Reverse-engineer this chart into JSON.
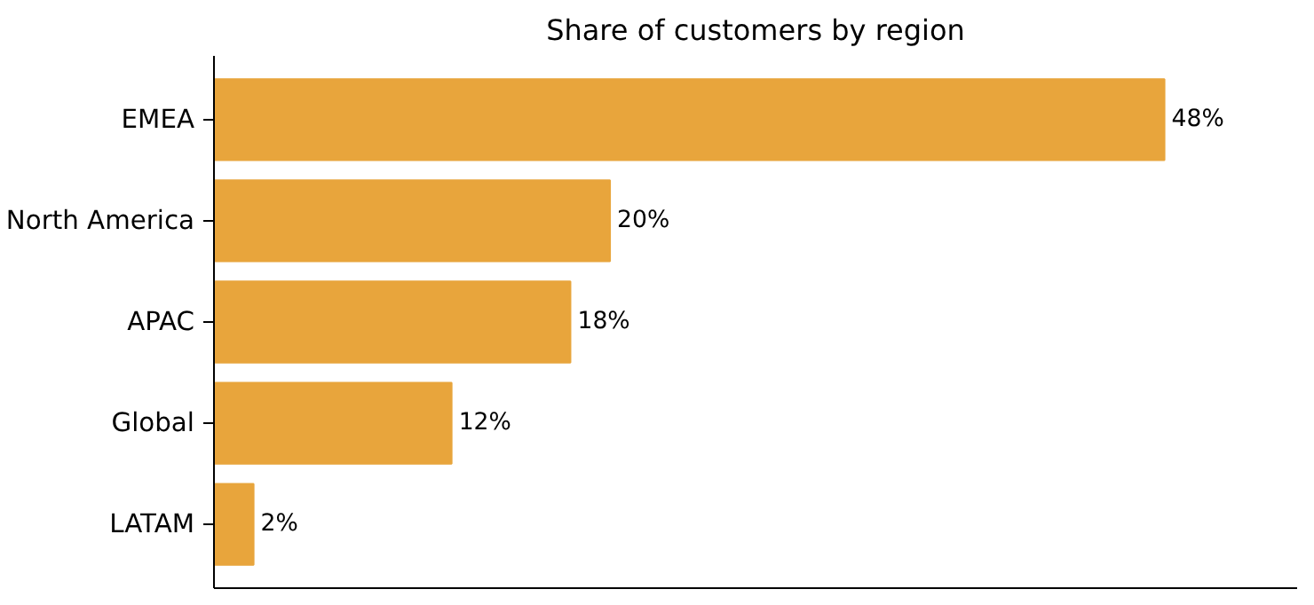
{
  "chart_data": {
    "type": "bar",
    "orientation": "horizontal",
    "title": "Share of customers by region",
    "categories": [
      "EMEA",
      "North America",
      "APAC",
      "Global",
      "LATAM"
    ],
    "values": [
      48,
      20,
      18,
      12,
      2
    ],
    "value_labels": [
      "48%",
      "20%",
      "18%",
      "12%",
      "2%"
    ],
    "color": "#e8a53c",
    "xlim": [
      0,
      54.7
    ],
    "tick_labels": "y",
    "grid": false
  }
}
